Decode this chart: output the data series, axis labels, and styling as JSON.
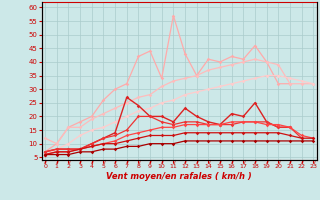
{
  "xlabel": "Vent moyen/en rafales ( km/h )",
  "background_color": "#cce8e8",
  "grid_color": "#aacccc",
  "x_values": [
    0,
    1,
    2,
    3,
    4,
    5,
    6,
    7,
    8,
    9,
    10,
    11,
    12,
    13,
    14,
    15,
    16,
    17,
    18,
    19,
    20,
    21,
    22,
    23
  ],
  "lines": [
    {
      "color": "#ffaaaa",
      "lw": 0.9,
      "y": [
        7,
        10,
        16,
        18,
        20,
        26,
        30,
        32,
        42,
        44,
        34,
        57,
        43,
        35,
        41,
        40,
        42,
        41,
        46,
        40,
        32,
        32,
        null,
        null
      ]
    },
    {
      "color": "#ffbbbb",
      "lw": 0.9,
      "y": [
        12,
        10,
        16,
        16,
        19,
        21,
        23,
        25,
        27,
        28,
        31,
        33,
        34,
        35,
        37,
        38,
        39,
        40,
        41,
        40,
        39,
        32,
        32,
        32
      ]
    },
    {
      "color": "#ffcccc",
      "lw": 0.9,
      "y": [
        6,
        8,
        10,
        13,
        15,
        16,
        18,
        20,
        22,
        23,
        25,
        26,
        28,
        29,
        30,
        31,
        32,
        33,
        34,
        35,
        35,
        34,
        33,
        32
      ]
    },
    {
      "color": "#dd2222",
      "lw": 1.0,
      "y": [
        7,
        8,
        8,
        8,
        10,
        12,
        14,
        27,
        24,
        20,
        20,
        18,
        23,
        20,
        18,
        17,
        21,
        20,
        25,
        18,
        16,
        16,
        null,
        null
      ]
    },
    {
      "color": "#ee3333",
      "lw": 0.9,
      "y": [
        7,
        8,
        8,
        8,
        10,
        12,
        13,
        15,
        20,
        20,
        18,
        17,
        18,
        18,
        17,
        17,
        17,
        18,
        18,
        18,
        16,
        16,
        12,
        null
      ]
    },
    {
      "color": "#ff4444",
      "lw": 0.9,
      "y": [
        6,
        7,
        7,
        8,
        9,
        10,
        11,
        13,
        14,
        15,
        16,
        16,
        17,
        17,
        17,
        17,
        18,
        18,
        18,
        17,
        17,
        16,
        13,
        12
      ]
    },
    {
      "color": "#cc1111",
      "lw": 0.9,
      "y": [
        6,
        7,
        7,
        8,
        9,
        10,
        10,
        11,
        12,
        13,
        13,
        13,
        14,
        14,
        14,
        14,
        14,
        14,
        14,
        14,
        14,
        13,
        12,
        12
      ]
    },
    {
      "color": "#aa0000",
      "lw": 0.9,
      "y": [
        6,
        6,
        6,
        7,
        7,
        8,
        8,
        9,
        9,
        10,
        10,
        10,
        11,
        11,
        11,
        11,
        11,
        11,
        11,
        11,
        11,
        11,
        11,
        11
      ]
    }
  ],
  "yticks": [
    5,
    10,
    15,
    20,
    25,
    30,
    35,
    40,
    45,
    50,
    55,
    60
  ],
  "xticks": [
    0,
    1,
    2,
    3,
    4,
    5,
    6,
    7,
    8,
    9,
    10,
    11,
    12,
    13,
    14,
    15,
    16,
    17,
    18,
    19,
    20,
    21,
    22,
    23
  ],
  "ylim": [
    4,
    62
  ],
  "xlim": [
    -0.3,
    23.3
  ],
  "tick_color": "#cc0000",
  "spine_color": "#cc0000"
}
